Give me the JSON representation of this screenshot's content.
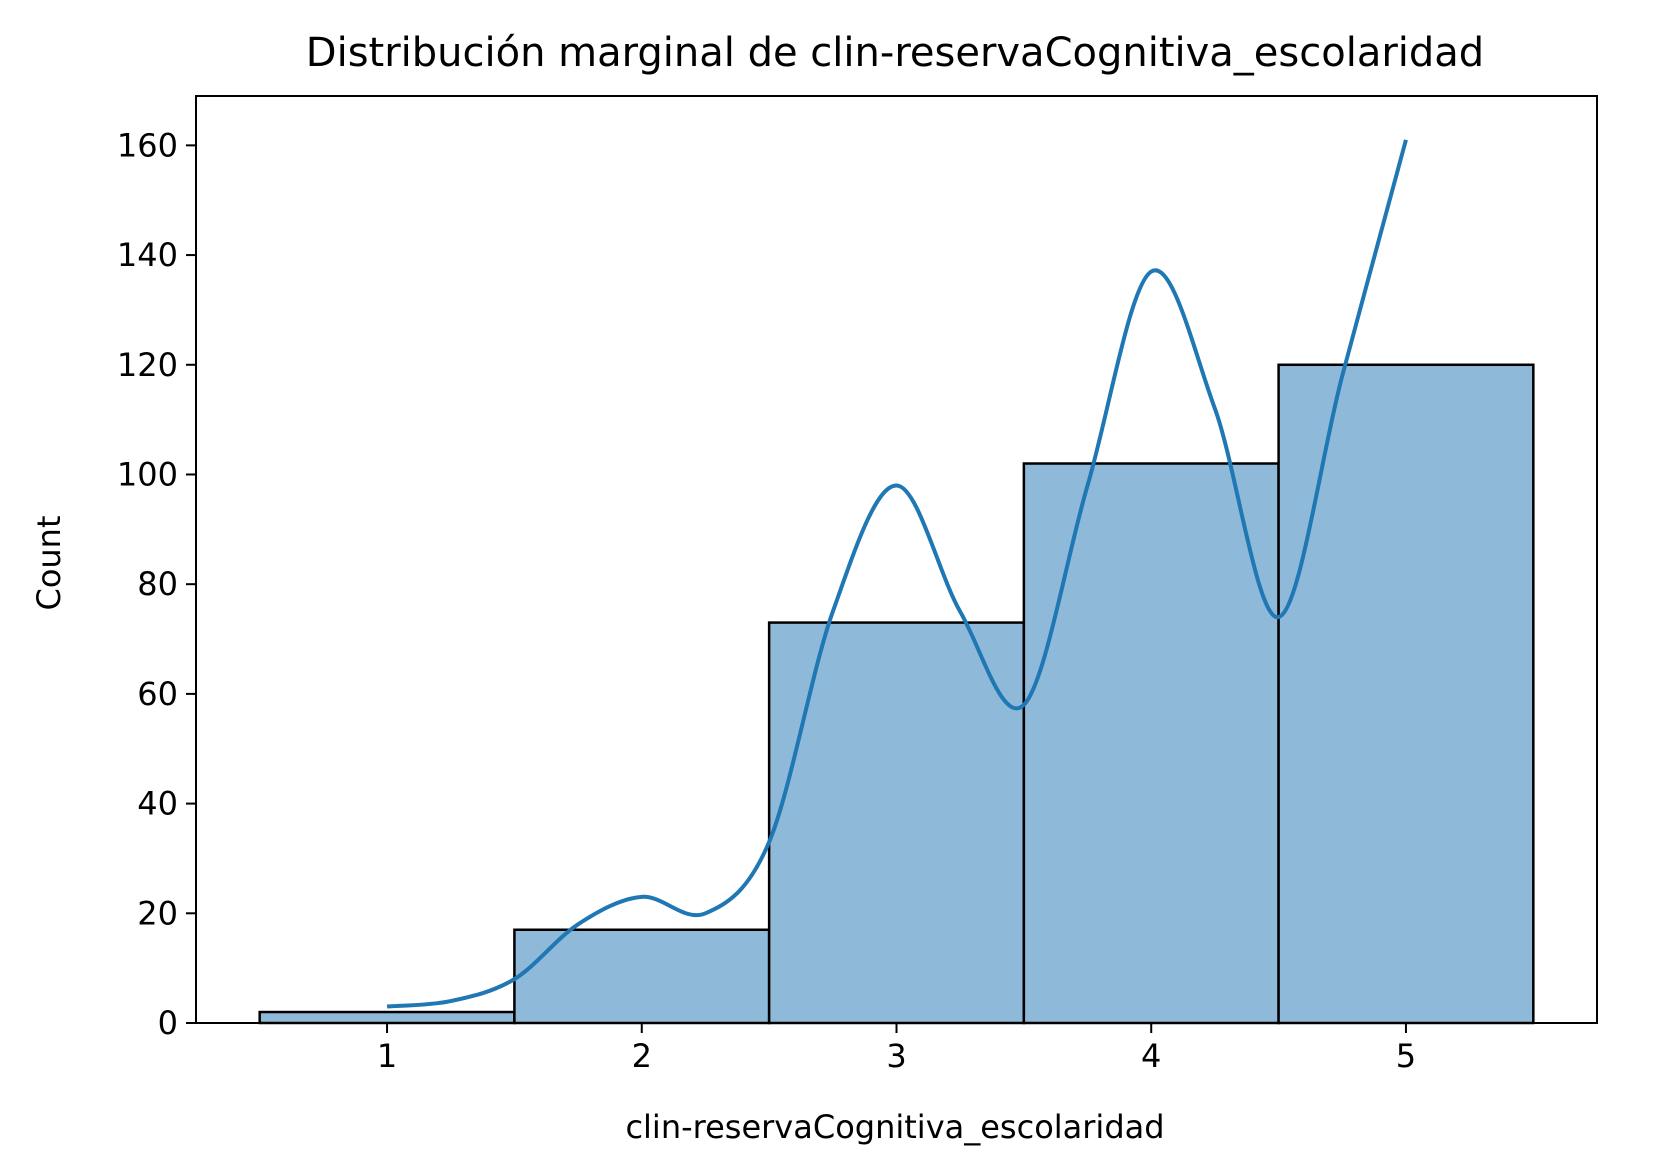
{
  "chart_data": {
    "type": "bar",
    "title": "Distribución marginal de clin-reservaCognitiva_escolaridad",
    "xlabel": "clin-reservaCognitiva_escolaridad",
    "ylabel": "Count",
    "categories": [
      "1",
      "2",
      "3",
      "4",
      "5"
    ],
    "bins": [
      {
        "x": 1,
        "count": 2
      },
      {
        "x": 2,
        "count": 17
      },
      {
        "x": 3,
        "count": 73
      },
      {
        "x": 4,
        "count": 102
      },
      {
        "x": 5,
        "count": 120
      }
    ],
    "kde": {
      "x": [
        1.0,
        1.25,
        1.5,
        1.75,
        2.0,
        2.25,
        2.5,
        2.75,
        3.0,
        3.25,
        3.5,
        3.75,
        4.0,
        4.25,
        4.5,
        4.75,
        5.0
      ],
      "y": [
        3,
        4,
        8,
        18,
        23,
        20,
        33,
        75,
        98,
        75,
        58,
        98,
        137,
        112,
        74,
        118,
        161
      ]
    },
    "xticks": [
      1,
      2,
      3,
      4,
      5
    ],
    "yticks": [
      0,
      20,
      40,
      60,
      80,
      100,
      120,
      140,
      160
    ],
    "xlim": [
      0.25,
      5.75
    ],
    "ylim": [
      0,
      169
    ],
    "grid": false,
    "colors": {
      "bar_fill": "#8fb9d9",
      "bar_edge": "#000000",
      "kde_line": "#1f77b4"
    }
  }
}
